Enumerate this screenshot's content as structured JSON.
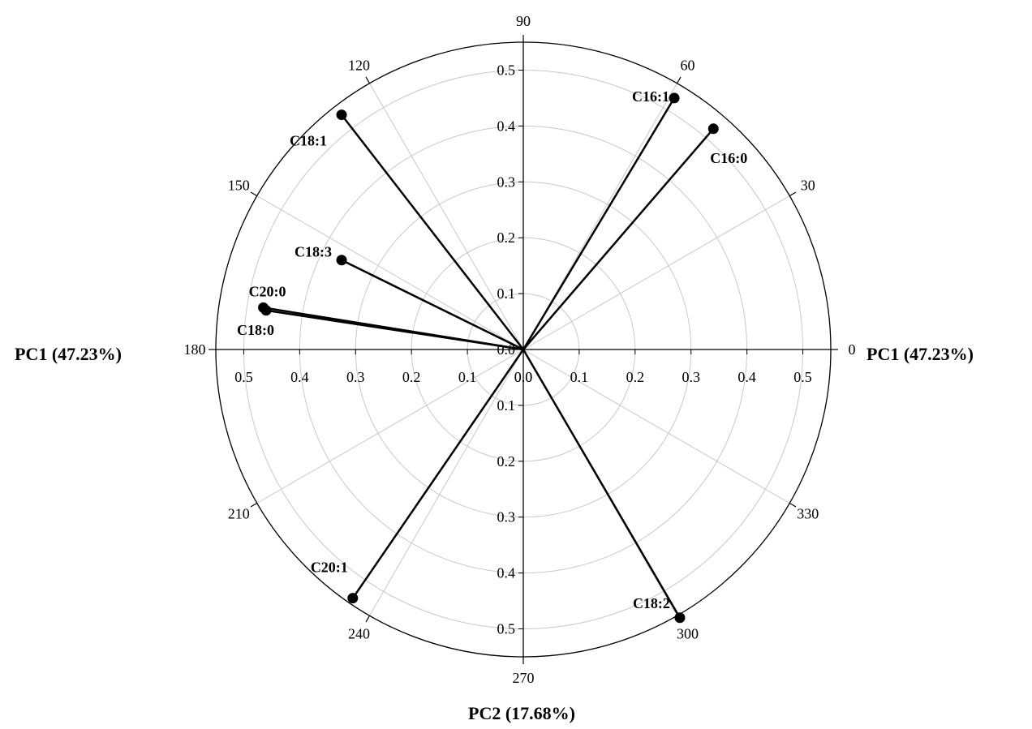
{
  "chart_data": {
    "type": "polar-biplot",
    "axis_titles": {
      "right": "PC1 (47.23%)",
      "left": "PC1 (47.23%)",
      "bottom": "PC2 (17.68%)"
    },
    "angle_ticks": [
      "0",
      "30",
      "60",
      "90",
      "120",
      "150",
      "180",
      "210",
      "240",
      "270",
      "300",
      "330"
    ],
    "angle_values": [
      0,
      30,
      60,
      90,
      120,
      150,
      180,
      210,
      240,
      270,
      300,
      330
    ],
    "radial_max": 0.55,
    "radial_ticks": [
      0.0,
      0.1,
      0.2,
      0.3,
      0.4,
      0.5
    ],
    "radial_tick_labels": [
      "0.0",
      "0.1",
      "0.2",
      "0.3",
      "0.4",
      "0.5"
    ],
    "grid": true,
    "vectors": [
      {
        "name": "C16:1",
        "pc1": 0.27,
        "pc2": 0.45
      },
      {
        "name": "C16:0",
        "pc1": 0.34,
        "pc2": 0.395
      },
      {
        "name": "C18:1",
        "pc1": -0.325,
        "pc2": 0.42
      },
      {
        "name": "C18:3",
        "pc1": -0.325,
        "pc2": 0.16
      },
      {
        "name": "C20:0",
        "pc1": -0.465,
        "pc2": 0.075
      },
      {
        "name": "C18:0",
        "pc1": -0.46,
        "pc2": 0.07
      },
      {
        "name": "C20:1",
        "pc1": -0.305,
        "pc2": -0.445
      },
      {
        "name": "C18:2",
        "pc1": 0.28,
        "pc2": -0.48
      }
    ]
  }
}
